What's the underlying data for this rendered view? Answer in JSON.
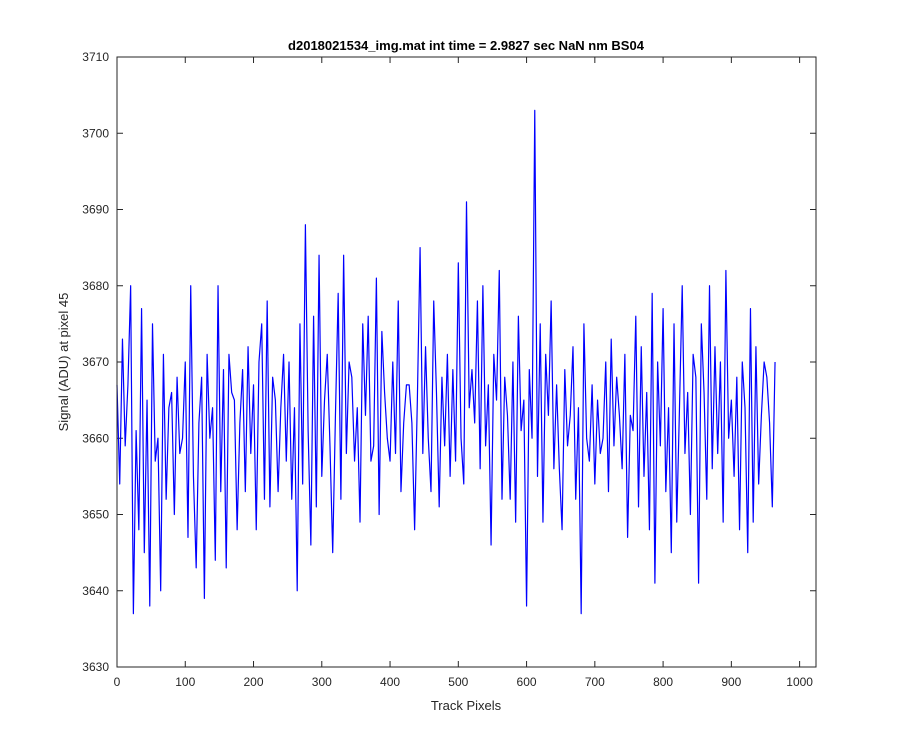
{
  "chart_data": {
    "type": "line",
    "title": "d2018021534_img.mat int time = 2.9827 sec  NaN nm BS04",
    "xlabel": "Track Pixels",
    "ylabel": "Signal (ADU) at pixel 45",
    "xlim": [
      0,
      1024
    ],
    "ylim": [
      3630,
      3710
    ],
    "xticks": [
      0,
      100,
      200,
      300,
      400,
      500,
      600,
      700,
      800,
      900,
      1000
    ],
    "yticks": [
      3630,
      3640,
      3650,
      3660,
      3670,
      3680,
      3690,
      3700,
      3710
    ],
    "grid": false,
    "legend": "none",
    "line_color": "#0000ff",
    "series": [
      {
        "x_start": 0,
        "x_step": 4,
        "values": [
          3667,
          3654,
          3673,
          3659,
          3667,
          3680,
          3637,
          3661,
          3648,
          3677,
          3645,
          3665,
          3638,
          3675,
          3657,
          3660,
          3640,
          3671,
          3652,
          3664,
          3666,
          3650,
          3668,
          3658,
          3660,
          3670,
          3647,
          3680,
          3655,
          3643,
          3662,
          3668,
          3639,
          3671,
          3660,
          3664,
          3644,
          3680,
          3653,
          3669,
          3643,
          3671,
          3666,
          3665,
          3648,
          3662,
          3669,
          3653,
          3672,
          3658,
          3667,
          3648,
          3670,
          3675,
          3652,
          3678,
          3651,
          3668,
          3665,
          3653,
          3664,
          3671,
          3657,
          3670,
          3652,
          3664,
          3640,
          3675,
          3654,
          3688,
          3661,
          3646,
          3676,
          3651,
          3684,
          3655,
          3665,
          3671,
          3659,
          3645,
          3663,
          3679,
          3652,
          3684,
          3658,
          3670,
          3668,
          3657,
          3664,
          3649,
          3675,
          3663,
          3676,
          3657,
          3659,
          3681,
          3650,
          3674,
          3666,
          3660,
          3657,
          3670,
          3658,
          3678,
          3653,
          3662,
          3667,
          3667,
          3662,
          3648,
          3665,
          3685,
          3658,
          3672,
          3660,
          3653,
          3678,
          3666,
          3651,
          3668,
          3659,
          3671,
          3655,
          3669,
          3657,
          3683,
          3660,
          3654,
          3691,
          3664,
          3669,
          3662,
          3678,
          3656,
          3680,
          3659,
          3667,
          3646,
          3671,
          3665,
          3682,
          3652,
          3668,
          3663,
          3652,
          3670,
          3649,
          3676,
          3661,
          3665,
          3638,
          3669,
          3660,
          3703,
          3655,
          3675,
          3649,
          3671,
          3663,
          3678,
          3656,
          3667,
          3656,
          3648,
          3669,
          3659,
          3663,
          3672,
          3652,
          3664,
          3637,
          3675,
          3660,
          3657,
          3667,
          3654,
          3665,
          3658,
          3660,
          3670,
          3653,
          3673,
          3659,
          3668,
          3663,
          3656,
          3671,
          3647,
          3663,
          3661,
          3676,
          3651,
          3672,
          3655,
          3666,
          3648,
          3679,
          3641,
          3670,
          3659,
          3677,
          3653,
          3664,
          3645,
          3675,
          3649,
          3664,
          3680,
          3658,
          3666,
          3650,
          3671,
          3668,
          3641,
          3675,
          3666,
          3652,
          3680,
          3656,
          3672,
          3658,
          3670,
          3649,
          3682,
          3660,
          3665,
          3655,
          3668,
          3648,
          3670,
          3664,
          3645,
          3677,
          3649,
          3672,
          3654,
          3663,
          3670,
          3668,
          3662,
          3651,
          3670
        ]
      }
    ]
  }
}
